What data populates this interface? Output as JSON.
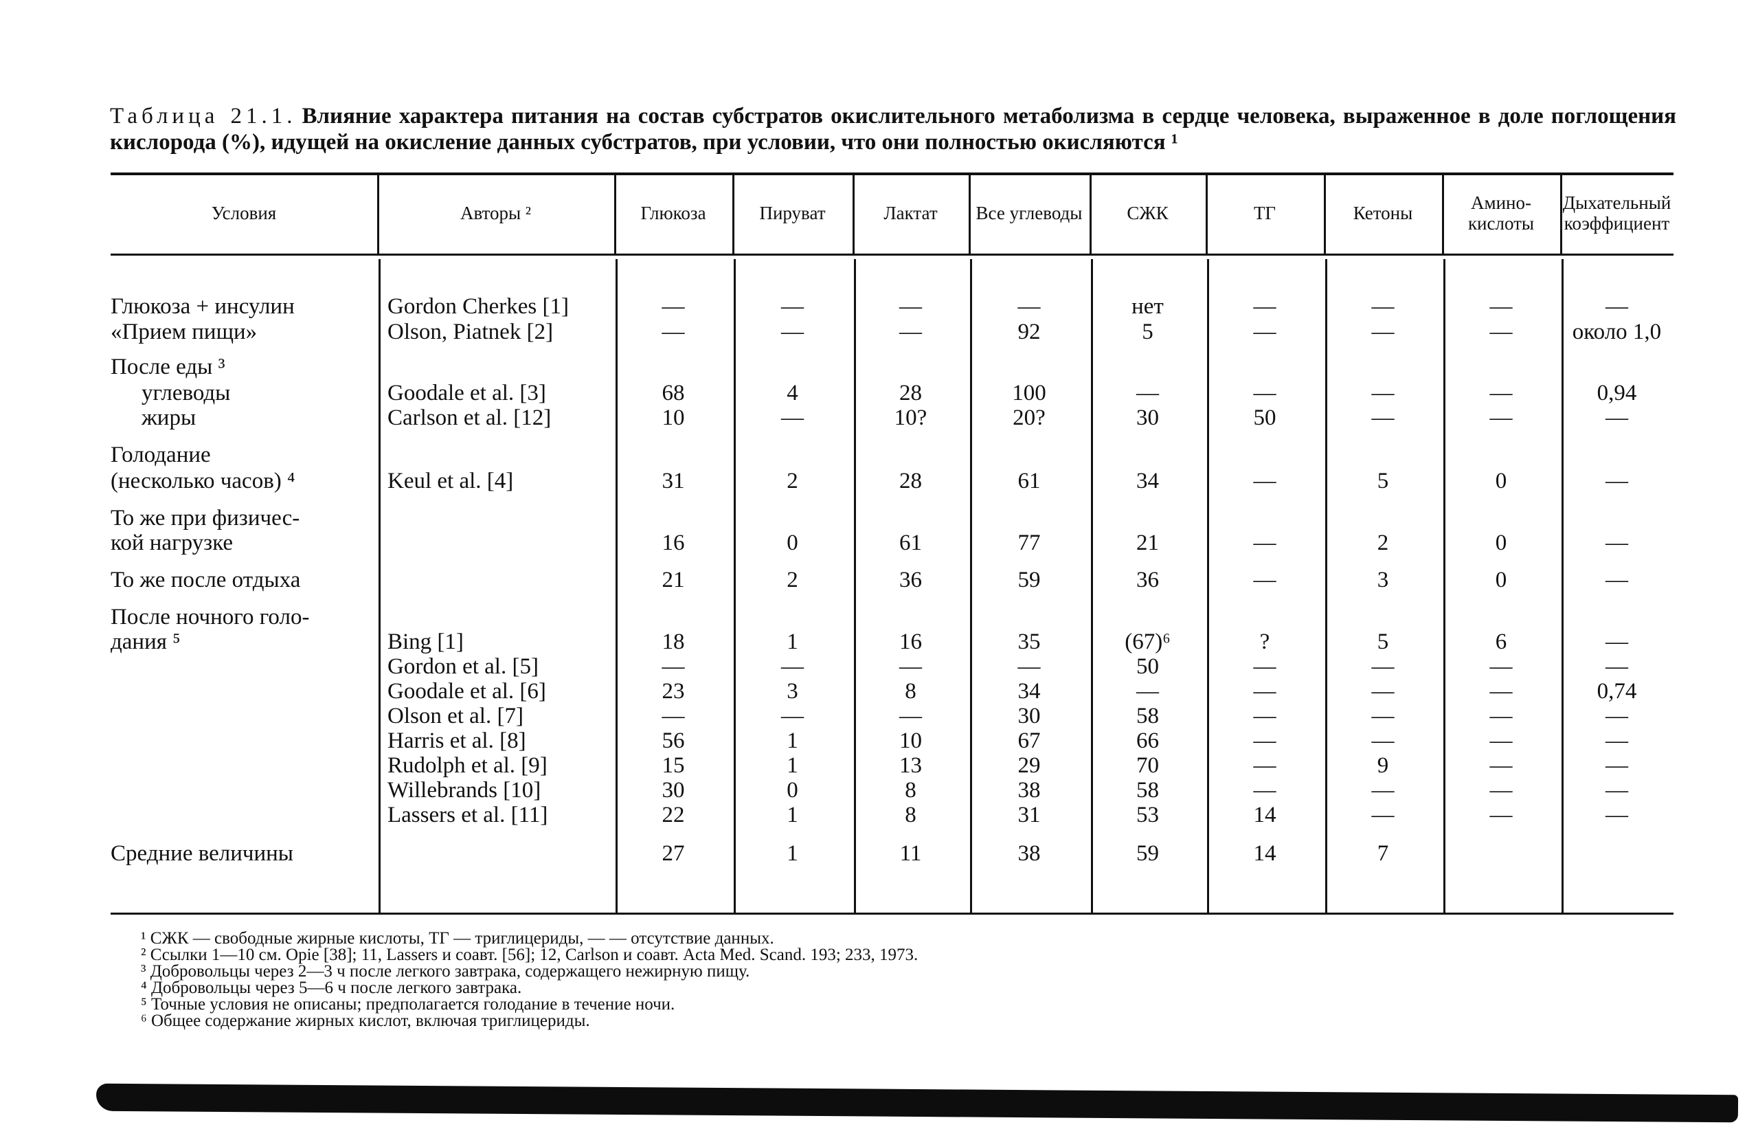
{
  "title": {
    "label": "Таблица 21.1.",
    "text": "Влияние характера питания на состав субстратов окислительного метаболизма в сердце человека, выраженное в доле поглощения кислорода (%), идущей на окисление данных субстратов, при условии, что они полностью окисляются ¹"
  },
  "table": {
    "header": [
      "Условия",
      "Авторы ²",
      "Глюкоза",
      "Пируват",
      "Лактат",
      "Все углеводы",
      "СЖК",
      "ТГ",
      "Кетоны",
      "Амино-кислоты",
      "Дыхательный коэффициент"
    ],
    "rows": [
      [
        "Глюкоза + инсулин",
        "Gordon Cherkes [1]",
        "—",
        "—",
        "—",
        "—",
        "нет",
        "—",
        "—",
        "—",
        "—"
      ],
      [
        "«Прием пищи»",
        "Olson, Piatnek [2]",
        "—",
        "—",
        "—",
        "92",
        "5",
        "—",
        "—",
        "—",
        "около 1,0"
      ],
      [
        "После еды ³",
        null,
        null,
        null,
        null,
        null,
        null,
        null,
        null,
        null,
        null
      ],
      [
        "углеводы",
        "Goodale et al. [3]",
        "68",
        "4",
        "28",
        "100",
        "—",
        "—",
        "—",
        "—",
        "0,94"
      ],
      [
        "жиры",
        "Carlson et al. [12]",
        "10",
        "—",
        "10?",
        "20?",
        "30",
        "50",
        "—",
        "—",
        "—"
      ],
      [
        "Голодание",
        null,
        null,
        null,
        null,
        null,
        null,
        null,
        null,
        null,
        null
      ],
      [
        "(несколько часов) ⁴",
        "Keul et al. [4]",
        "31",
        "2",
        "28",
        "61",
        "34",
        "—",
        "5",
        "0",
        "—"
      ],
      [
        "То же при физичес-",
        null,
        null,
        null,
        null,
        null,
        null,
        null,
        null,
        null,
        null
      ],
      [
        "кой нагрузке",
        null,
        "16",
        "0",
        "61",
        "77",
        "21",
        "—",
        "2",
        "0",
        "—"
      ],
      [
        "То же после отдыха",
        null,
        "21",
        "2",
        "36",
        "59",
        "36",
        "—",
        "3",
        "0",
        "—"
      ],
      [
        "После ночного голо-",
        null,
        null,
        null,
        null,
        null,
        null,
        null,
        null,
        null,
        null
      ],
      [
        "дания ⁵",
        "Bing [1]",
        "18",
        "1",
        "16",
        "35",
        "(67)⁶",
        "?",
        "5",
        "6",
        "—"
      ],
      [
        null,
        "Gordon et al. [5]",
        "—",
        "—",
        "—",
        "—",
        "50",
        "—",
        "—",
        "—",
        "—"
      ],
      [
        null,
        "Goodale et al. [6]",
        "23",
        "3",
        "8",
        "34",
        "—",
        "—",
        "—",
        "—",
        "0,74"
      ],
      [
        null,
        "Olson et al. [7]",
        "—",
        "—",
        "—",
        "30",
        "58",
        "—",
        "—",
        "—",
        "—"
      ],
      [
        null,
        "Harris et al. [8]",
        "56",
        "1",
        "10",
        "67",
        "66",
        "—",
        "—",
        "—",
        "—"
      ],
      [
        null,
        "Rudolph et al. [9]",
        "15",
        "1",
        "13",
        "29",
        "70",
        "—",
        "9",
        "—",
        "—"
      ],
      [
        null,
        "Willebrands [10]",
        "30",
        "0",
        "8",
        "38",
        "58",
        "—",
        "—",
        "—",
        "—"
      ],
      [
        null,
        "Lassers et al. [11]",
        "22",
        "1",
        "8",
        "31",
        "53",
        "14",
        "—",
        "—",
        "—"
      ],
      [
        "Средние величины",
        null,
        "27",
        "1",
        "11",
        "38",
        "59",
        "14",
        "7",
        null,
        null
      ]
    ]
  },
  "footnotes": [
    "¹ СЖК — свободные жирные кислоты, ТГ — триглицериды, — — отсутствие данных.",
    "² Ссылки 1—10 см. Opie [38]; 11, Lassers и соавт. [56]; 12, Carlson и соавт. Acta Med. Scand. 193; 233, 1973.",
    "³ Добровольцы через 2—3 ч после легкого завтрака, содержащего нежирную пищу.",
    "⁴ Добровольцы через 5—6 ч после легкого завтрака.",
    "⁵ Точные условия не описаны; предполагается голодание в течение ночи.",
    "⁶ Общее содержание жирных кислот, включая триглицериды."
  ]
}
